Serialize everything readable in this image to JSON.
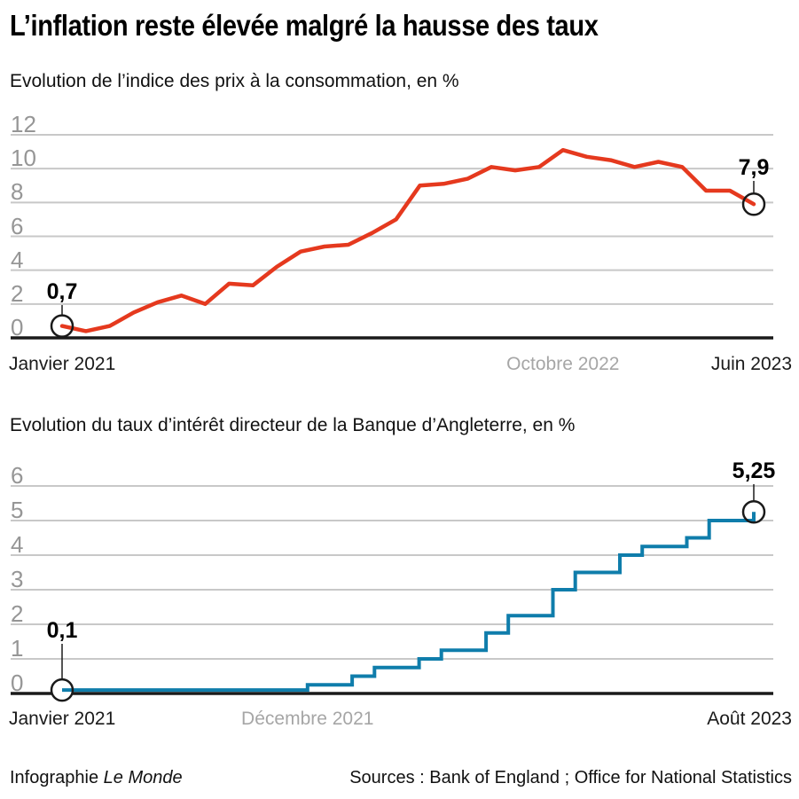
{
  "header": {
    "title": "L’inflation reste élevée malgré la hausse des taux"
  },
  "footer": {
    "credit_prefix": "Infographie ",
    "credit_brand": "Le Monde",
    "sources": "Sources : Bank of England ; Office for National Statistics"
  },
  "colors": {
    "inflation_line": "#e5391e",
    "rate_line": "#0f7dab",
    "grid": "#c8c8c8",
    "axis": "#1a1a1a",
    "dark_label": "#1a1a1a",
    "muted_label": "#a6a6a6",
    "ytick_label": "#969696",
    "marker_ring": "#1a1a1a"
  },
  "chart_data": [
    {
      "type": "line",
      "title": "Evolution de l’indice des prix à la consommation, en %",
      "x_range": {
        "start": "Janvier 2021",
        "end": "Juin 2023",
        "unit": "mois",
        "points": 30
      },
      "values": [
        0.7,
        0.4,
        0.7,
        1.5,
        2.1,
        2.5,
        2.0,
        3.2,
        3.1,
        4.2,
        5.1,
        5.4,
        5.5,
        6.2,
        7.0,
        9.0,
        9.1,
        9.4,
        10.1,
        9.9,
        10.1,
        11.1,
        10.7,
        10.5,
        10.1,
        10.4,
        10.1,
        8.7,
        8.7,
        7.9
      ],
      "ylim": [
        0,
        12.2
      ],
      "yticks": [
        0,
        2,
        4,
        6,
        8,
        10,
        12
      ],
      "x_ticks": [
        {
          "label": "Janvier 2021",
          "m": 0,
          "align": "left",
          "muted": false
        },
        {
          "label": "Octobre 2022",
          "m": 21,
          "align": "center",
          "muted": true
        },
        {
          "label": "Juin 2023",
          "m": 29,
          "align": "right",
          "muted": false
        }
      ],
      "point_labels": {
        "start": "0,7",
        "end": "7,9"
      },
      "grid": true,
      "legend": "none",
      "color_key": "inflation_line"
    },
    {
      "type": "step",
      "title": "Evolution du taux d’intérêt directeur de la Banque d’Angleterre, en %",
      "x_range": {
        "start": "Janvier 2021",
        "end": "Août 2023",
        "unit": "mois",
        "points": 32
      },
      "steps": [
        [
          0,
          0.1
        ],
        [
          11,
          0.25
        ],
        [
          13,
          0.5
        ],
        [
          14,
          0.75
        ],
        [
          16,
          1.0
        ],
        [
          17,
          1.25
        ],
        [
          19,
          1.75
        ],
        [
          20,
          2.25
        ],
        [
          22,
          3.0
        ],
        [
          23,
          3.5
        ],
        [
          25,
          4.0
        ],
        [
          26,
          4.25
        ],
        [
          28,
          4.5
        ],
        [
          29,
          5.0
        ],
        [
          31,
          5.25
        ]
      ],
      "ylim": [
        0,
        6.3
      ],
      "yticks": [
        0,
        1,
        2,
        3,
        4,
        5,
        6
      ],
      "x_ticks": [
        {
          "label": "Janvier 2021",
          "m": 0,
          "align": "left",
          "muted": false
        },
        {
          "label": "Décembre 2021",
          "m": 11,
          "align": "center",
          "muted": true
        },
        {
          "label": "Août 2023",
          "m": 31,
          "align": "right",
          "muted": false
        }
      ],
      "point_labels": {
        "start": "0,1",
        "end": "5,25"
      },
      "grid": true,
      "legend": "none",
      "color_key": "rate_line"
    }
  ]
}
